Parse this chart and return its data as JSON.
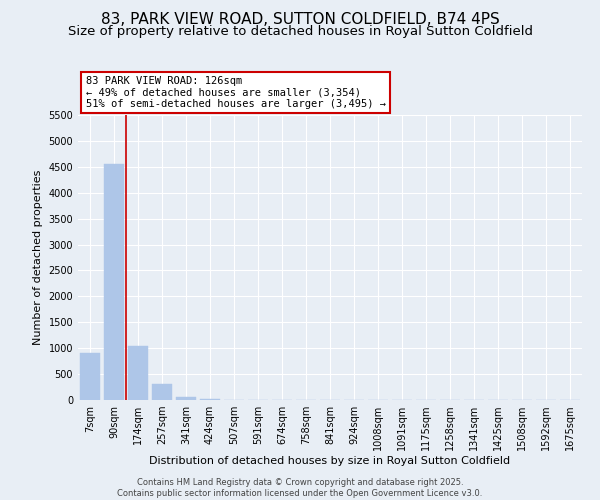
{
  "title": "83, PARK VIEW ROAD, SUTTON COLDFIELD, B74 4PS",
  "subtitle": "Size of property relative to detached houses in Royal Sutton Coldfield",
  "xlabel": "Distribution of detached houses by size in Royal Sutton Coldfield",
  "ylabel": "Number of detached properties",
  "categories": [
    "7sqm",
    "90sqm",
    "174sqm",
    "257sqm",
    "341sqm",
    "424sqm",
    "507sqm",
    "591sqm",
    "674sqm",
    "758sqm",
    "841sqm",
    "924sqm",
    "1008sqm",
    "1091sqm",
    "1175sqm",
    "1258sqm",
    "1341sqm",
    "1425sqm",
    "1508sqm",
    "1592sqm",
    "1675sqm"
  ],
  "values": [
    900,
    4550,
    1050,
    300,
    60,
    10,
    5,
    3,
    2,
    1,
    1,
    1,
    0,
    0,
    0,
    0,
    0,
    0,
    0,
    0,
    0
  ],
  "bar_color": "#aec6e8",
  "bar_edge_color": "#aec6e8",
  "vline_x": 1.5,
  "vline_color": "#cc0000",
  "annotation_line1": "83 PARK VIEW ROAD: 126sqm",
  "annotation_line2": "← 49% of detached houses are smaller (3,354)",
  "annotation_line3": "51% of semi-detached houses are larger (3,495) →",
  "annotation_box_edgecolor": "#cc0000",
  "ylim": [
    0,
    5500
  ],
  "yticks": [
    0,
    500,
    1000,
    1500,
    2000,
    2500,
    3000,
    3500,
    4000,
    4500,
    5000,
    5500
  ],
  "background_color": "#e8eef5",
  "footer_line1": "Contains HM Land Registry data © Crown copyright and database right 2025.",
  "footer_line2": "Contains public sector information licensed under the Open Government Licence v3.0.",
  "title_fontsize": 11,
  "subtitle_fontsize": 9.5,
  "xlabel_fontsize": 8,
  "ylabel_fontsize": 8,
  "tick_fontsize": 7,
  "annotation_fontsize": 7.5,
  "footer_fontsize": 6
}
